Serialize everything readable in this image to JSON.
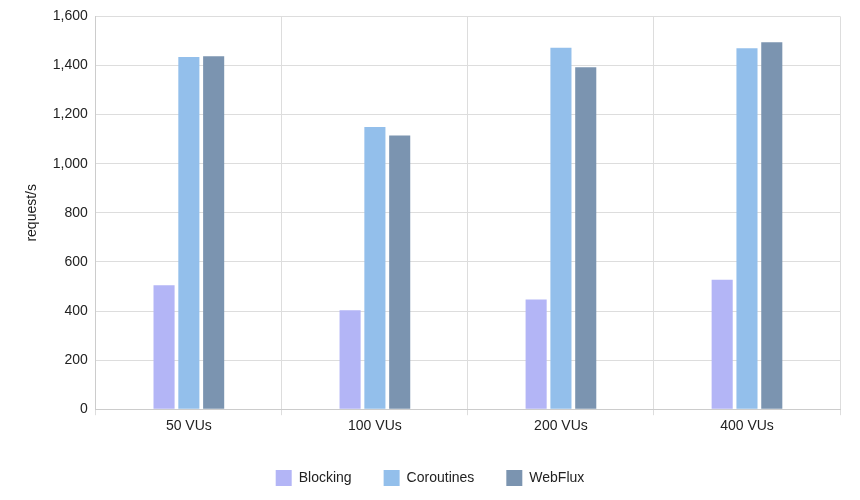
{
  "chart_data": {
    "type": "bar",
    "y_label": "request/s",
    "categories": [
      "50 VUs",
      "100 VUs",
      "200 VUs",
      "400 VUs"
    ],
    "series": [
      {
        "name": "Blocking",
        "color": "#b3b5f6",
        "values": [
          505,
          403,
          447,
          527
        ]
      },
      {
        "name": "Coroutines",
        "color": "#93bfeb",
        "values": [
          1435,
          1150,
          1472,
          1470
        ]
      },
      {
        "name": "WebFlux",
        "color": "#7b94b0",
        "values": [
          1438,
          1115,
          1393,
          1495
        ]
      }
    ],
    "ylim": [
      0,
      1600
    ],
    "yticks": [
      0,
      200,
      400,
      600,
      800,
      {
        "value": 1000,
        "label": "1,000"
      },
      {
        "value": 1200,
        "label": "1,200"
      },
      {
        "value": 1400,
        "label": "1,400"
      },
      {
        "value": 1600,
        "label": "1,600"
      }
    ],
    "grid": true,
    "legend": "bottom"
  }
}
